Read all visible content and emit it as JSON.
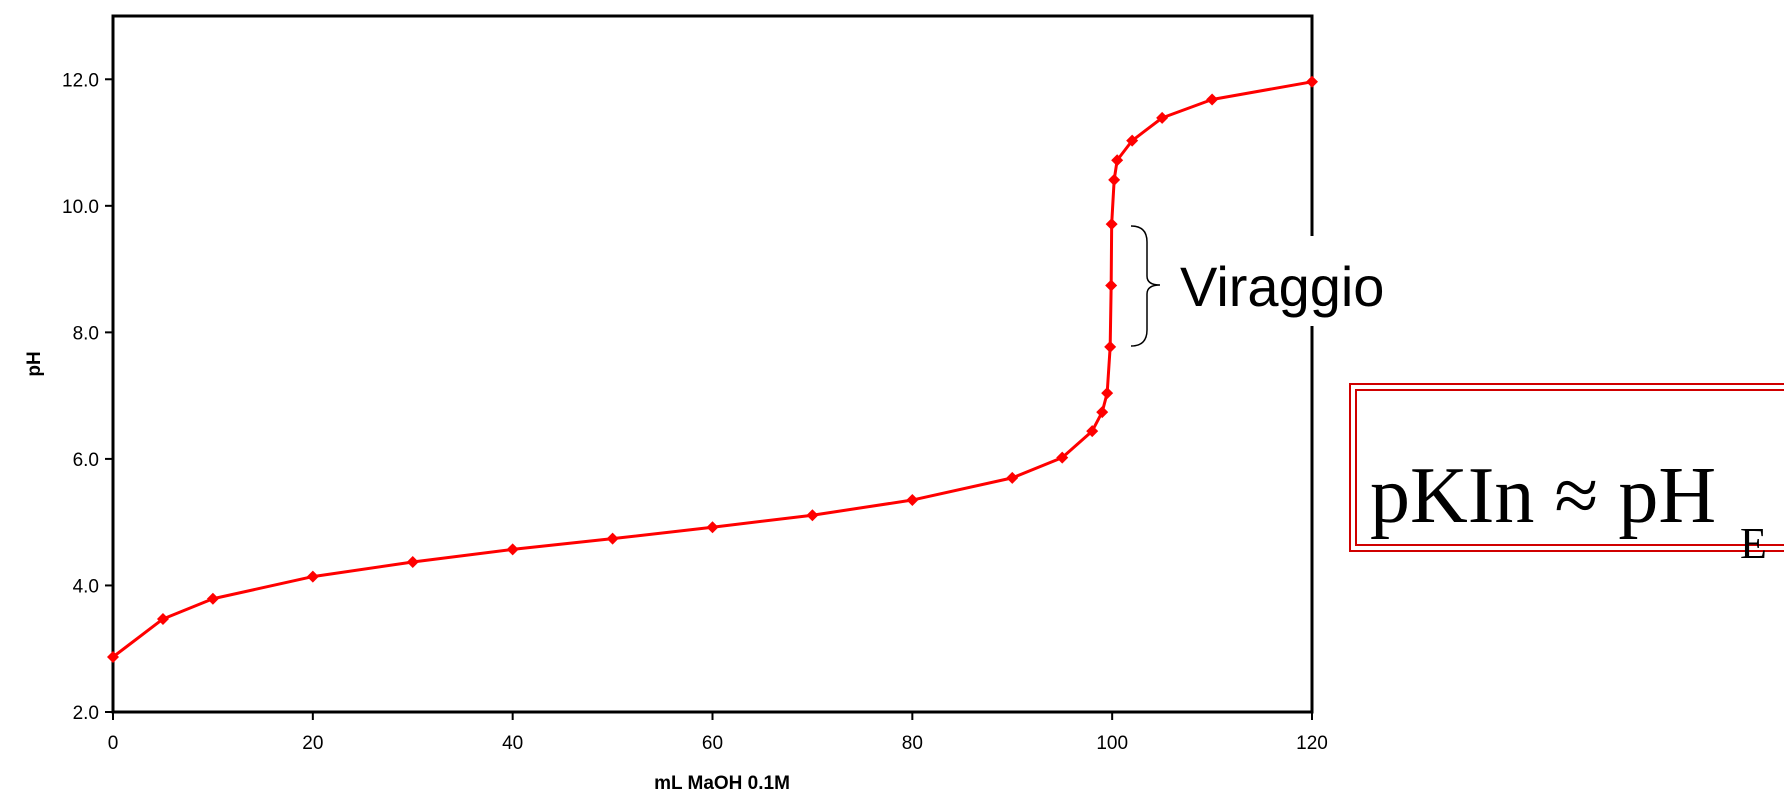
{
  "chart_data": {
    "type": "line",
    "x_label": "mL MaOH 0.1M",
    "y_label": "pH",
    "x": [
      0,
      5,
      10,
      20,
      30,
      40,
      50,
      60,
      70,
      80,
      90,
      95,
      98,
      99,
      99.5,
      99.8,
      99.9,
      99.95,
      100.2,
      100.5,
      102,
      105,
      110,
      120
    ],
    "series": [
      {
        "color": "#ff0000",
        "values": [
          2.87,
          3.47,
          3.79,
          4.14,
          4.37,
          4.57,
          4.74,
          4.92,
          5.11,
          5.35,
          5.7,
          6.02,
          6.44,
          6.74,
          7.04,
          7.77,
          8.74,
          9.71,
          10.41,
          10.72,
          11.03,
          11.39,
          11.68,
          11.96
        ]
      }
    ],
    "xlim": [
      0,
      120
    ],
    "xticks": [
      0,
      20,
      40,
      60,
      80,
      100,
      120
    ],
    "ylim": [
      2,
      13
    ],
    "yticks": [
      {
        "value": 2,
        "label": "2.0"
      },
      {
        "value": 4,
        "label": "4.0"
      },
      {
        "value": 6,
        "label": "6.0"
      },
      {
        "value": 8,
        "label": "8.0"
      },
      {
        "value": 10,
        "label": "10.0"
      },
      {
        "value": 12,
        "label": "12.0"
      }
    ],
    "grid": false,
    "annotations": {
      "range_label": "Viraggio",
      "formula": "pKIn ≈ pH",
      "formula_subscript": "E"
    }
  }
}
